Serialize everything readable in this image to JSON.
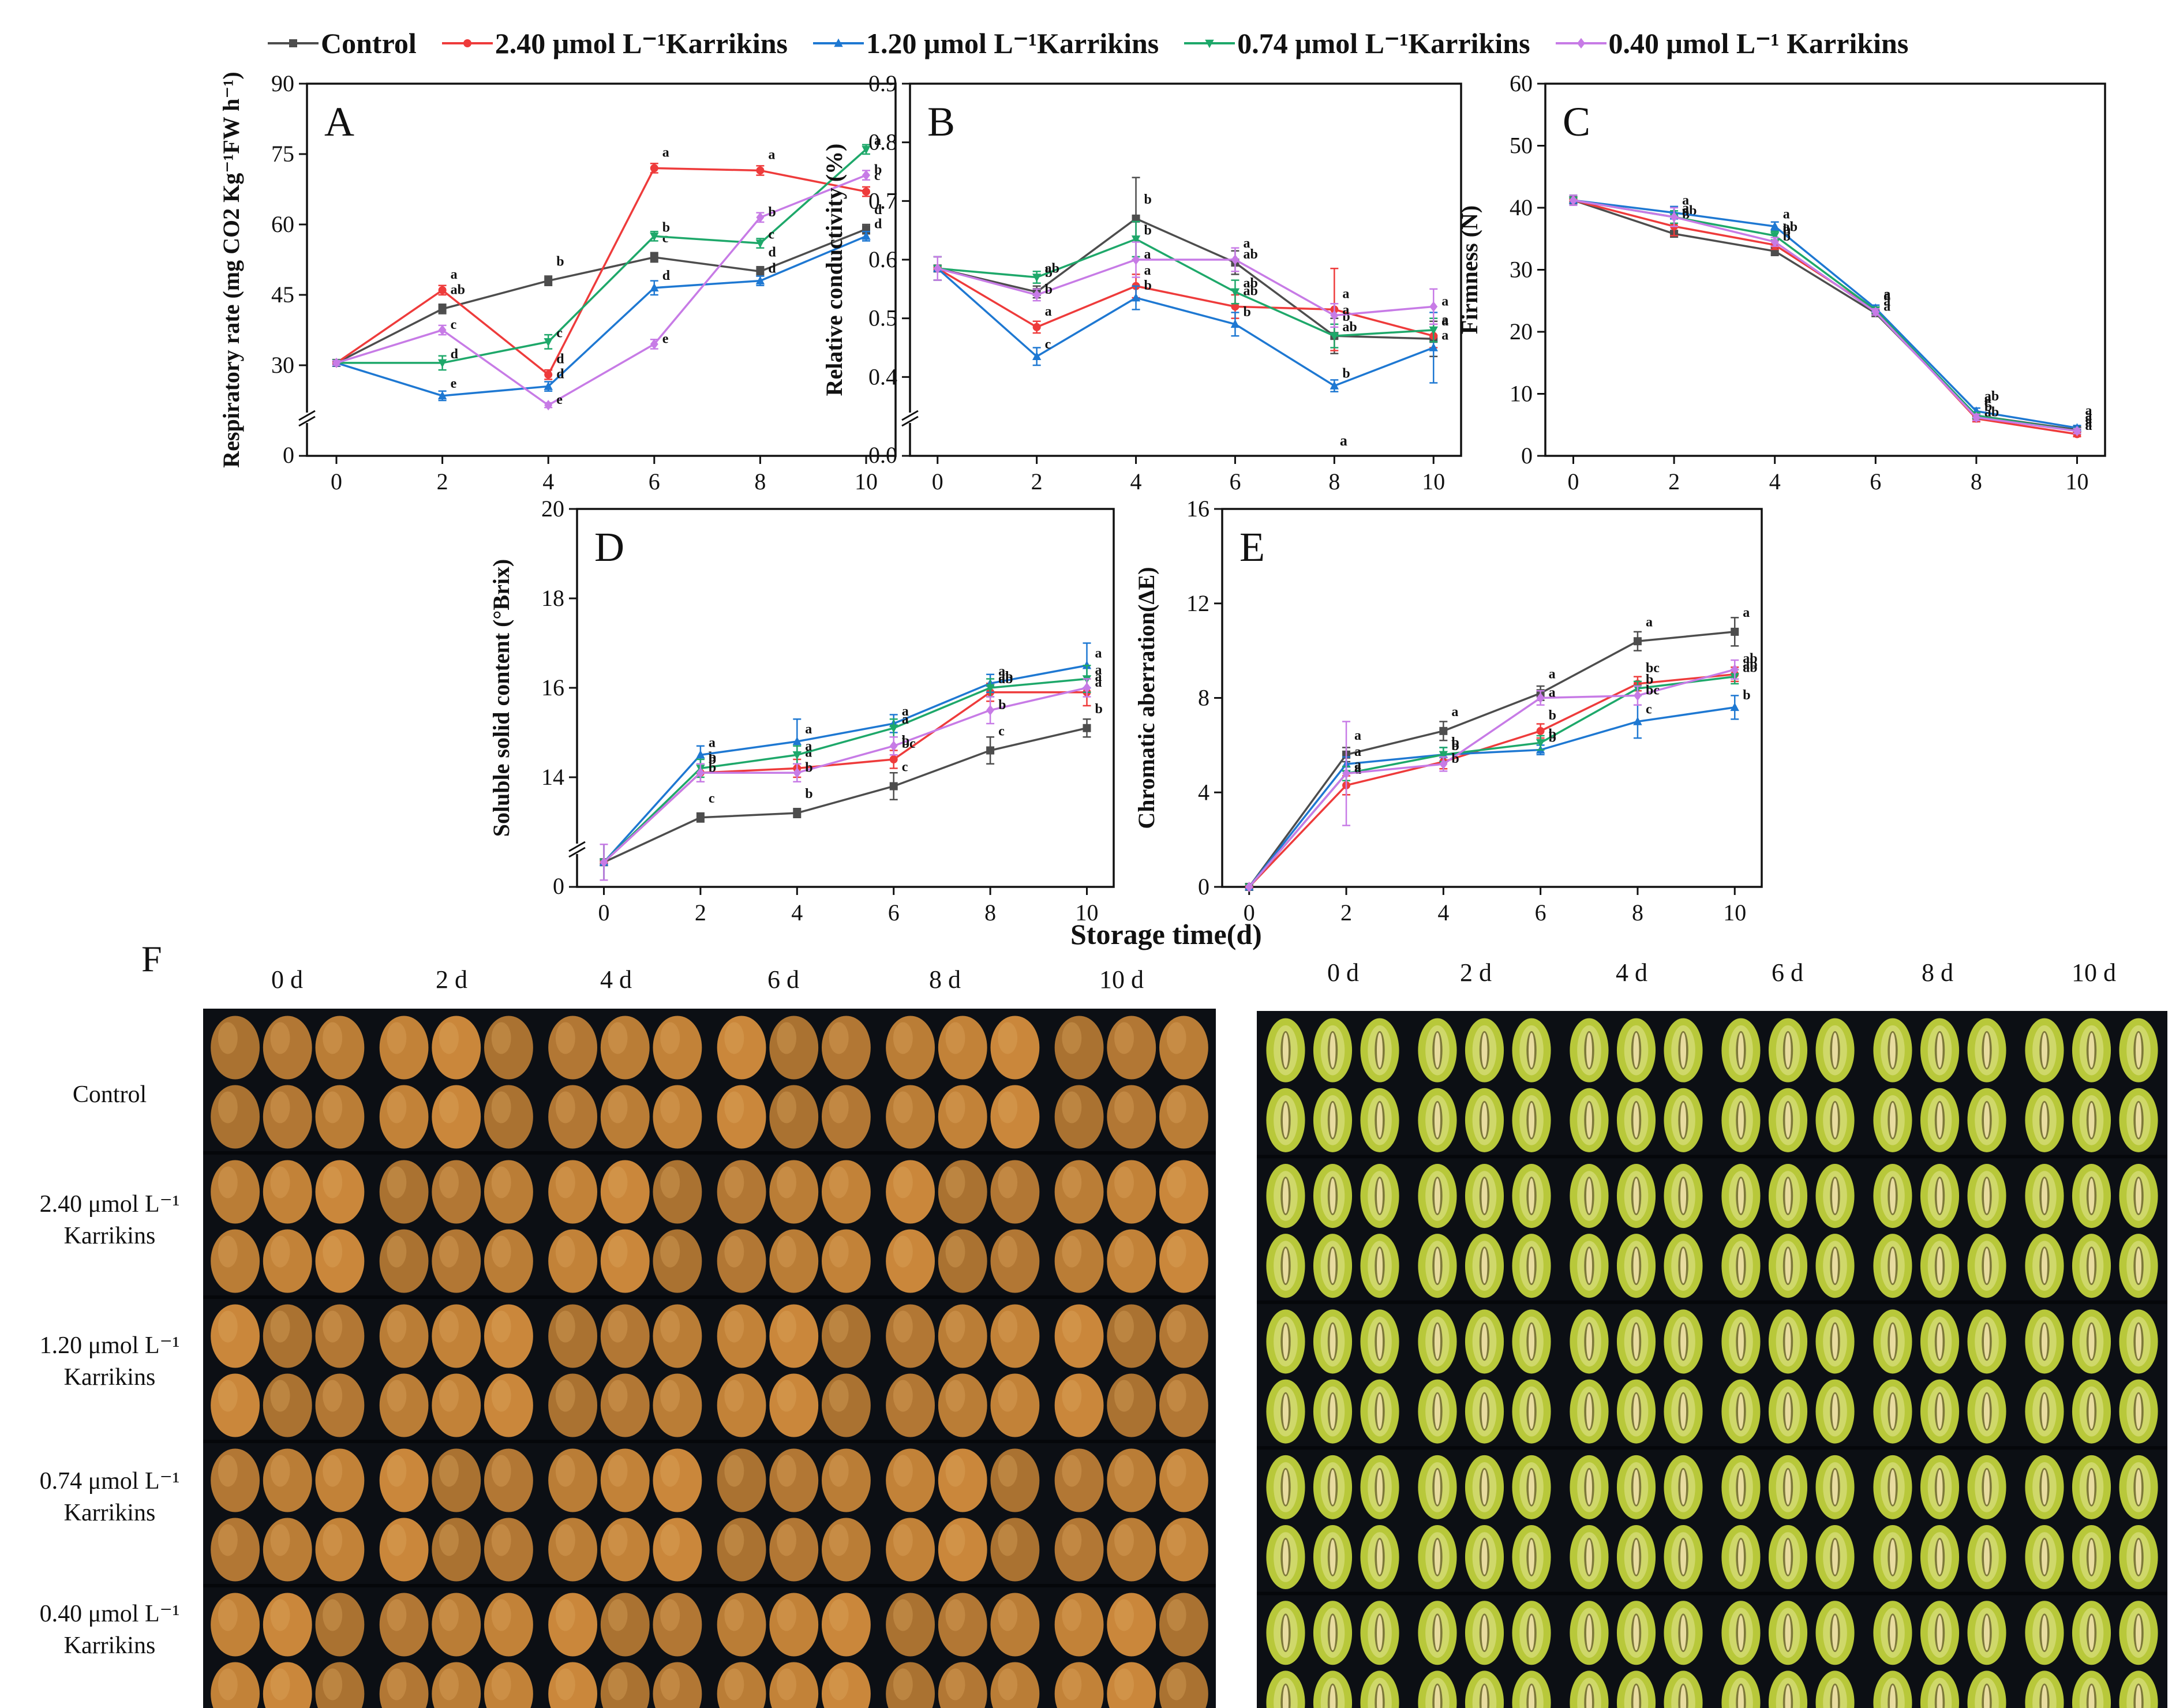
{
  "colors": {
    "Control": "#4d4d4d",
    "2.40": "#ee3b3b",
    "1.20": "#1e78d2",
    "0.74": "#1ea86a",
    "0.40": "#c77be6"
  },
  "legend": [
    {
      "key": "Control",
      "label": "Control",
      "marker": "square"
    },
    {
      "key": "2.40",
      "label": "2.40 μmol L⁻¹Karrikins",
      "marker": "circle"
    },
    {
      "key": "1.20",
      "label": "1.20 μmol L⁻¹Karrikins",
      "marker": "triangle"
    },
    {
      "key": "0.74",
      "label": "0.74 μmol L⁻¹Karrikins",
      "marker": "tri-down"
    },
    {
      "key": "0.40",
      "label": "0.40 μmol L⁻¹ Karrikins",
      "marker": "diamond"
    }
  ],
  "shared_xlabel": "Storage time(d)",
  "chart_data": [
    {
      "panel": "A",
      "type": "line",
      "ylabel": "Respiratory rate (mg CO2 Kg⁻¹FW h⁻¹)",
      "x": [
        0,
        2,
        4,
        6,
        8,
        10
      ],
      "xticks": [
        "0",
        "2",
        "4",
        "6",
        "8",
        "10"
      ],
      "ylim": [
        15,
        90
      ],
      "yticks": [
        30,
        45,
        60,
        75,
        90
      ],
      "ytick_labels": [
        "30",
        "45",
        "60",
        "75",
        "90"
      ],
      "y_zero_label": "0",
      "axis_break": true,
      "series": [
        {
          "key": "Control",
          "values": [
            30.5,
            42,
            48,
            53,
            50,
            59
          ],
          "errors": [
            0.5,
            1,
            1,
            1,
            1,
            1
          ],
          "letters": [
            "",
            "ab",
            "b",
            "c",
            "d",
            "d"
          ]
        },
        {
          "key": "2.40",
          "values": [
            30.5,
            46,
            28,
            72,
            71.5,
            67
          ],
          "errors": [
            0.5,
            1,
            1,
            1,
            1,
            1
          ],
          "letters": [
            "",
            "a",
            "d",
            "a",
            "a",
            "c"
          ]
        },
        {
          "key": "1.20",
          "values": [
            30.5,
            23.5,
            25.5,
            46.5,
            48,
            57.5
          ],
          "errors": [
            0.5,
            1,
            1,
            1.5,
            1,
            1
          ],
          "letters": [
            "",
            "e",
            "d",
            "d",
            "d",
            "d"
          ]
        },
        {
          "key": "0.74",
          "values": [
            30.5,
            30.5,
            35,
            57.5,
            56,
            76
          ],
          "errors": [
            0.5,
            1.5,
            1.5,
            1,
            1,
            1
          ],
          "letters": [
            "",
            "d",
            "c",
            "b",
            "c",
            "a"
          ]
        },
        {
          "key": "0.40",
          "values": [
            30.5,
            37.5,
            21.5,
            34.5,
            61.5,
            70.5
          ],
          "errors": [
            0.5,
            1,
            0.5,
            1,
            1,
            1
          ],
          "letters": [
            "",
            "c",
            "e",
            "e",
            "b",
            "b"
          ]
        }
      ]
    },
    {
      "panel": "B",
      "type": "line",
      "ylabel": "Relative conductivity (%)",
      "x": [
        0,
        2,
        4,
        6,
        8,
        10
      ],
      "xticks": [
        "0",
        "2",
        "4",
        "6",
        "8",
        "10"
      ],
      "ylim": [
        0.3,
        0.9
      ],
      "yticks": [
        0.4,
        0.5,
        0.6,
        0.7,
        0.8,
        0.9
      ],
      "ytick_labels": [
        "0.4",
        "0.5",
        "0.6",
        "0.7",
        "0.8",
        "0.9"
      ],
      "y_zero_label": "0.0",
      "axis_break": true,
      "extra_text": "a",
      "series": [
        {
          "key": "Control",
          "values": [
            0.585,
            0.545,
            0.67,
            0.595,
            0.47,
            0.465
          ],
          "errors": [
            0.02,
            0.01,
            0.07,
            0.02,
            0.03,
            0.03
          ],
          "letters": [
            "",
            "b",
            "b",
            "a",
            "b",
            "a"
          ]
        },
        {
          "key": "2.40",
          "values": [
            0.585,
            0.485,
            0.555,
            0.52,
            0.515,
            0.47
          ],
          "errors": [
            0.02,
            0.01,
            0.02,
            0.02,
            0.07,
            0.02
          ],
          "letters": [
            "",
            "a",
            "a",
            "ab",
            "a",
            "a"
          ]
        },
        {
          "key": "1.20",
          "values": [
            0.585,
            0.435,
            0.535,
            0.49,
            0.385,
            0.45
          ],
          "errors": [
            0.02,
            0.015,
            0.02,
            0.02,
            0.01,
            0.06
          ],
          "letters": [
            "",
            "c",
            "b",
            "b",
            "b",
            "a"
          ]
        },
        {
          "key": "0.74",
          "values": [
            0.585,
            0.57,
            0.635,
            0.545,
            0.47,
            0.48
          ],
          "errors": [
            0.02,
            0.01,
            0.03,
            0.02,
            0.02,
            0.02
          ],
          "letters": [
            "",
            "ab",
            "b",
            "ab",
            "ab",
            "a"
          ]
        },
        {
          "key": "0.40",
          "values": [
            0.585,
            0.54,
            0.6,
            0.6,
            0.505,
            0.52
          ],
          "errors": [
            0.02,
            0.01,
            0.03,
            0.02,
            0.02,
            0.03
          ],
          "letters": [
            "",
            "b",
            "a",
            "ab",
            "a",
            "a"
          ]
        }
      ]
    },
    {
      "panel": "C",
      "type": "line",
      "ylabel": "Firmness (N)",
      "x": [
        0,
        2,
        4,
        6,
        8,
        10
      ],
      "xticks": [
        "0",
        "2",
        "4",
        "6",
        "8",
        "10"
      ],
      "ylim": [
        0,
        60
      ],
      "yticks": [
        0,
        10,
        20,
        30,
        40,
        50,
        60
      ],
      "ytick_labels": [
        "0",
        "10",
        "20",
        "30",
        "40",
        "50",
        "60"
      ],
      "axis_break": false,
      "series": [
        {
          "key": "Control",
          "values": [
            41.2,
            35.8,
            33,
            23,
            6.5,
            4.2
          ],
          "errors": [
            0.8,
            0.5,
            0.7,
            0.5,
            0.5,
            0.4
          ],
          "letters": [
            "",
            "b",
            "b",
            "a",
            "ab",
            "a"
          ]
        },
        {
          "key": "2.40",
          "values": [
            41.2,
            37,
            34,
            23.5,
            6,
            3.5
          ],
          "errors": [
            0.8,
            1.5,
            0.7,
            0.5,
            0.5,
            0.4
          ],
          "letters": [
            "",
            "ab",
            "b",
            "a",
            "c",
            "a"
          ]
        },
        {
          "key": "1.20",
          "values": [
            41.2,
            39.2,
            37,
            23.8,
            7.2,
            4.5
          ],
          "errors": [
            0.8,
            1,
            0.7,
            0.5,
            0.5,
            0.4
          ],
          "letters": [
            "",
            "a",
            "a",
            "a",
            "a",
            "a"
          ]
        },
        {
          "key": "0.74",
          "values": [
            41.2,
            38.5,
            35.5,
            23.5,
            6.5,
            4
          ],
          "errors": [
            0.8,
            1,
            0.7,
            0.5,
            0.5,
            0.4
          ],
          "letters": [
            "",
            "a",
            "ab",
            "a",
            "b",
            "a"
          ]
        },
        {
          "key": "0.40",
          "values": [
            41.2,
            38.5,
            34.5,
            23.2,
            6.2,
            4
          ],
          "errors": [
            0.8,
            1.5,
            0.7,
            0.5,
            0.5,
            0.4
          ],
          "letters": [
            "",
            "a",
            "b",
            "a",
            "ab",
            "a"
          ]
        }
      ]
    },
    {
      "panel": "D",
      "type": "line",
      "ylabel": "Soluble solid content (°Brix)",
      "x": [
        0,
        2,
        4,
        6,
        8,
        10
      ],
      "xticks": [
        "0",
        "2",
        "4",
        "6",
        "8",
        "10"
      ],
      "ylim": [
        12,
        20
      ],
      "yticks": [
        14,
        16,
        18,
        20
      ],
      "ytick_labels": [
        "14",
        "16",
        "18",
        "20"
      ],
      "y_zero_label": "0",
      "axis_break": true,
      "series": [
        {
          "key": "Control",
          "values": [
            12.1,
            13.1,
            13.2,
            13.8,
            14.6,
            15.1
          ],
          "errors": [
            0.4,
            0.1,
            0.1,
            0.3,
            0.3,
            0.2
          ],
          "letters": [
            "",
            "c",
            "b",
            "c",
            "c",
            "b"
          ]
        },
        {
          "key": "2.40",
          "values": [
            12.1,
            14.1,
            14.2,
            14.4,
            15.9,
            15.9
          ],
          "errors": [
            0.4,
            0.2,
            0.2,
            0.2,
            0.2,
            0.3
          ],
          "letters": [
            "",
            "b",
            "a",
            "bc",
            "ab",
            "a"
          ]
        },
        {
          "key": "1.20",
          "values": [
            12.1,
            14.5,
            14.8,
            15.2,
            16.1,
            16.5
          ],
          "errors": [
            0.4,
            0.2,
            0.5,
            0.2,
            0.2,
            0.5
          ],
          "letters": [
            "",
            "a",
            "a",
            "a",
            "a",
            "a"
          ]
        },
        {
          "key": "0.74",
          "values": [
            12.1,
            14.2,
            14.5,
            15.1,
            16.0,
            16.2
          ],
          "errors": [
            0.4,
            0.2,
            0.2,
            0.2,
            0.2,
            0.3
          ],
          "letters": [
            "",
            "b",
            "a",
            "a",
            "ab",
            "a"
          ]
        },
        {
          "key": "0.40",
          "values": [
            12.1,
            14.1,
            14.1,
            14.7,
            15.5,
            16.0
          ],
          "errors": [
            0.4,
            0.2,
            0.2,
            0.2,
            0.3,
            0.2
          ],
          "letters": [
            "",
            "b",
            "b",
            "b",
            "b",
            "a"
          ]
        }
      ]
    },
    {
      "panel": "E",
      "type": "line",
      "ylabel": "Chromatic aberration(ΔE)",
      "x": [
        0,
        2,
        4,
        6,
        8,
        10
      ],
      "xticks": [
        "0",
        "2",
        "4",
        "6",
        "8",
        "10"
      ],
      "ylim": [
        0,
        16
      ],
      "yticks": [
        0,
        4,
        8,
        12,
        16
      ],
      "ytick_labels": [
        "0",
        "4",
        "8",
        "12",
        "16"
      ],
      "axis_break": false,
      "series": [
        {
          "key": "Control",
          "values": [
            0,
            5.6,
            6.6,
            8.2,
            10.4,
            10.8
          ],
          "errors": [
            0,
            0.3,
            0.4,
            0.3,
            0.4,
            0.6
          ],
          "letters": [
            "",
            "a",
            "a",
            "a",
            "a",
            "a"
          ]
        },
        {
          "key": "2.40",
          "values": [
            0,
            4.3,
            5.3,
            6.6,
            8.6,
            9.0
          ],
          "errors": [
            0,
            0.4,
            0.3,
            0.3,
            0.3,
            0.3
          ],
          "letters": [
            "",
            "a",
            "b",
            "b",
            "bc",
            "ab"
          ]
        },
        {
          "key": "1.20",
          "values": [
            0,
            5.2,
            5.6,
            5.8,
            7.0,
            7.6
          ],
          "errors": [
            0,
            0.3,
            0.3,
            0.2,
            0.7,
            0.5
          ],
          "letters": [
            "",
            "a",
            "b",
            "b",
            "c",
            "b"
          ]
        },
        {
          "key": "0.74",
          "values": [
            0,
            4.8,
            5.6,
            6.1,
            8.4,
            8.9
          ],
          "errors": [
            0,
            0.3,
            0.3,
            0.3,
            0.3,
            0.3
          ],
          "letters": [
            "",
            "a",
            "b",
            "b",
            "b",
            "ab"
          ]
        },
        {
          "key": "0.40",
          "values": [
            0,
            4.8,
            5.2,
            8.0,
            8.1,
            9.2
          ],
          "errors": [
            0,
            2.2,
            0.3,
            0.3,
            0.4,
            0.4
          ],
          "letters": [
            "",
            "a",
            "b",
            "a",
            "bc",
            "ab"
          ]
        }
      ]
    }
  ],
  "panel_f": {
    "letter": "F",
    "days": [
      "0 d",
      "2 d",
      "4 d",
      "6 d",
      "8 d",
      "10 d"
    ],
    "rows": [
      {
        "line1": "Control",
        "line2": ""
      },
      {
        "line1": "2.40 μmol L⁻¹",
        "line2": "Karrikins"
      },
      {
        "line1": "1.20 μmol L⁻¹",
        "line2": "Karrikins"
      },
      {
        "line1": "0.74 μmol L⁻¹",
        "line2": "Karrikins"
      },
      {
        "line1": "0.40 μmol L⁻¹",
        "line2": "Karrikins"
      }
    ],
    "peel_color": "#c8883a",
    "flesh_color": "#b8c83a",
    "seed_color": "#3a2a12",
    "core_color": "#e8dca0"
  }
}
